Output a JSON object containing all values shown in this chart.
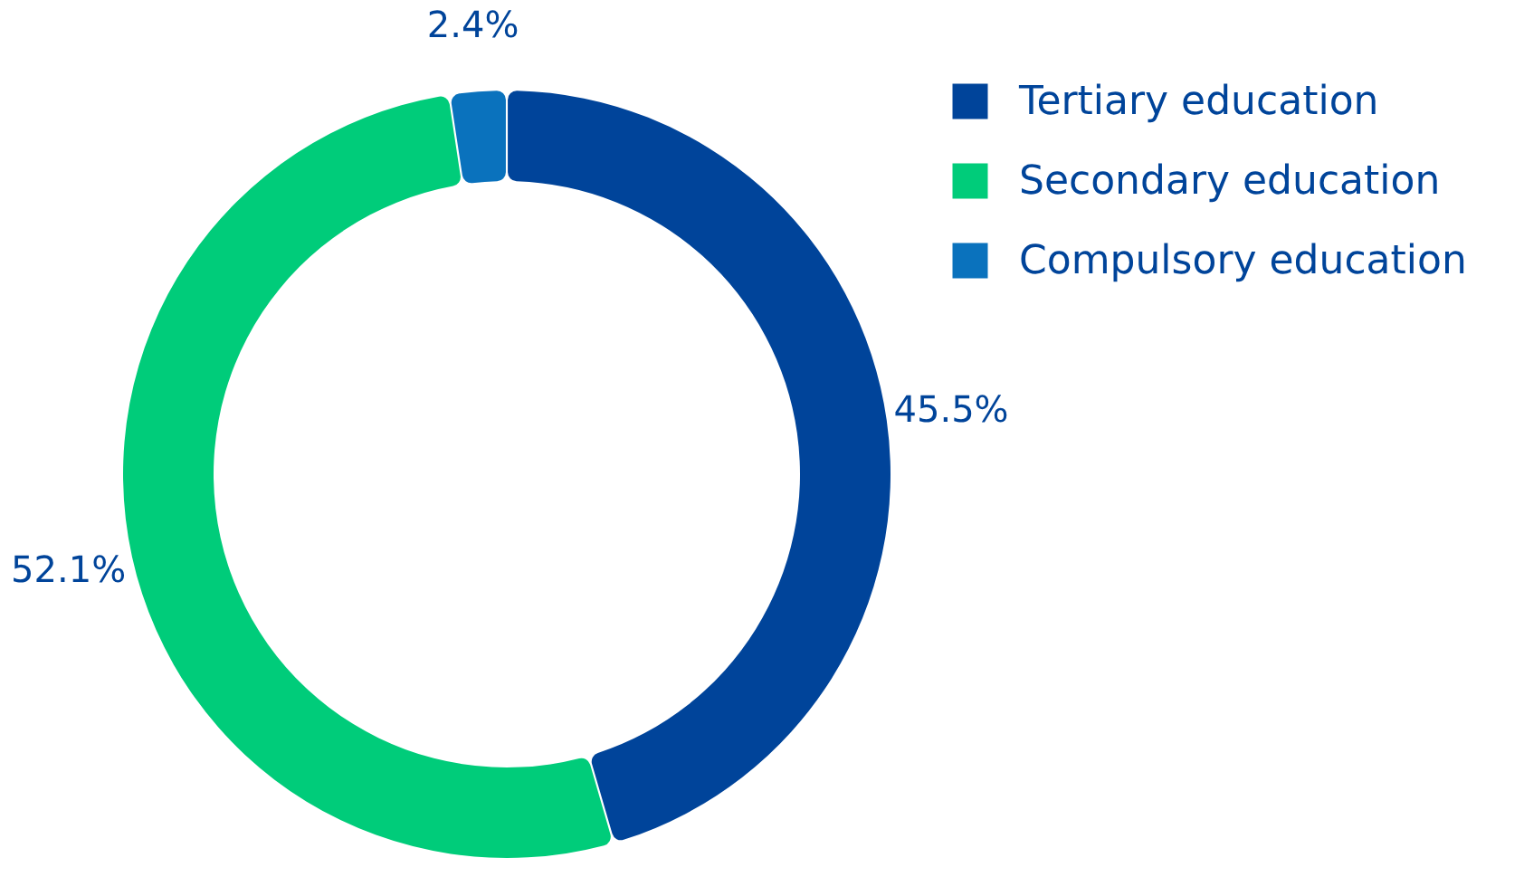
{
  "chart_data": {
    "type": "donut",
    "categories": [
      "Tertiary education",
      "Secondary education",
      "Compulsory education"
    ],
    "values": [
      45.5,
      52.1,
      2.4
    ],
    "colors": [
      "#00449a",
      "#00cc7a",
      "#0a72bd"
    ],
    "value_labels": [
      "45.5%",
      "52.1%",
      "2.4%"
    ],
    "legend": "top right"
  }
}
